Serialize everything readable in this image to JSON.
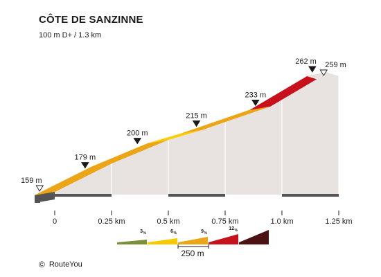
{
  "chart_data": {
    "type": "area",
    "title": "CÔTE DE SANZINNE",
    "subtitle": "100 m D+ / 1.3 km",
    "x_unit": "km",
    "y_unit": "m",
    "points": [
      {
        "x": 0.0,
        "y": 159,
        "label": "159 m",
        "marker": "start"
      },
      {
        "x": 0.2,
        "y": 179,
        "label": "179 m",
        "marker": "filled"
      },
      {
        "x": 0.43,
        "y": 200,
        "label": "200 m",
        "marker": "filled"
      },
      {
        "x": 0.69,
        "y": 215,
        "label": "215 m",
        "marker": "filled"
      },
      {
        "x": 0.95,
        "y": 233,
        "label": "233 m",
        "marker": "filled"
      },
      {
        "x": 1.2,
        "y": 262,
        "label": "262 m",
        "marker": "filled"
      },
      {
        "x": 1.25,
        "y": 259,
        "label": "259 m",
        "marker": "end"
      }
    ],
    "segments": [
      {
        "from": 0.0,
        "to": 0.25,
        "gradient_class": "6-9 %"
      },
      {
        "from": 0.25,
        "to": 0.5,
        "gradient_class": "6-9 %"
      },
      {
        "from": 0.5,
        "to": 0.65,
        "gradient_class": "3-6 %"
      },
      {
        "from": 0.65,
        "to": 0.95,
        "gradient_class": "6-9 %"
      },
      {
        "from": 0.95,
        "to": 1.2,
        "gradient_class": "9-12 %"
      },
      {
        "from": 1.2,
        "to": 1.25,
        "gradient_class": "descent"
      }
    ],
    "x_ticks": [
      {
        "value": 0,
        "label": "0"
      },
      {
        "value": 0.25,
        "label": "0.25 km"
      },
      {
        "value": 0.5,
        "label": "0.5 km"
      },
      {
        "value": 0.75,
        "label": "0.75 km"
      },
      {
        "value": 1.0,
        "label": "1.0 km"
      },
      {
        "value": 1.25,
        "label": "1.25 km"
      }
    ],
    "xlim": [
      0,
      1.25
    ],
    "legend": {
      "scale_label": "250 m",
      "items": [
        {
          "label": "3 %",
          "color": "#7a8f3a"
        },
        {
          "label": "6 %",
          "color": "#f8c800"
        },
        {
          "label": "9 %",
          "color": "#eca516"
        },
        {
          "label": "12 %",
          "color": "#c5121c"
        },
        {
          "label": "",
          "color": "#4a1212"
        }
      ]
    },
    "colors": {
      "3-6 %": "#fbcd0a",
      "6-9 %": "#eca516",
      "9-12 %": "#c7101c",
      "descent": "#e8e3e1",
      "wall": "#e8e3e1",
      "base": "#545454"
    }
  },
  "credit": {
    "symbol": "©",
    "text": "RouteYou"
  }
}
